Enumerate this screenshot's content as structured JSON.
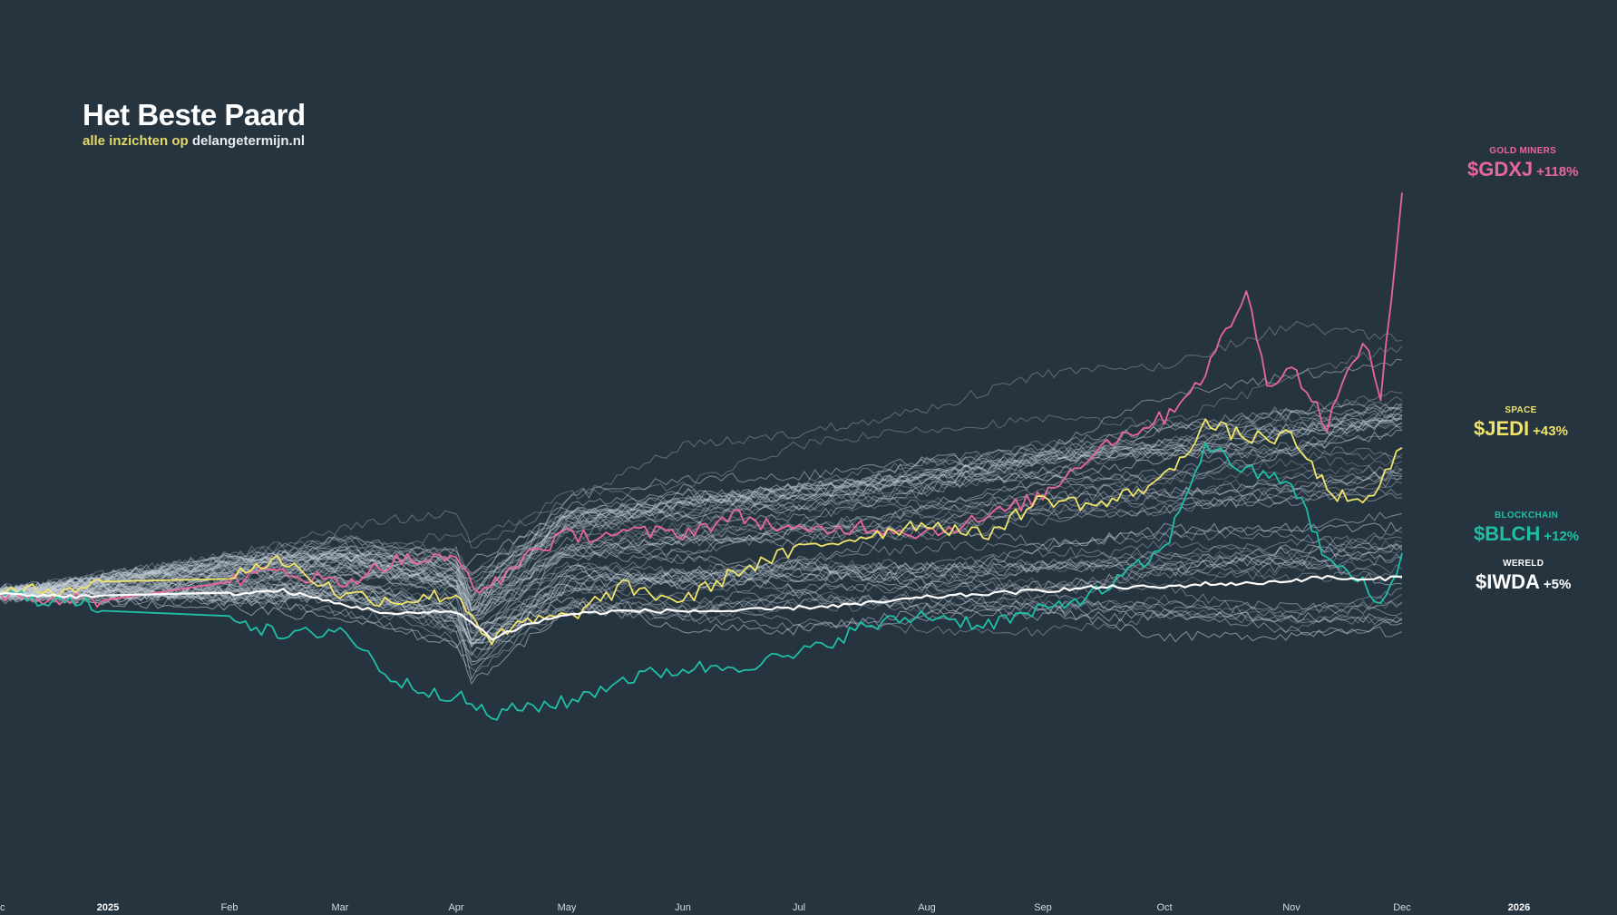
{
  "header": {
    "title": "Het Beste Paard",
    "subtitle_prefix": "alle inzichten op",
    "subtitle_site": "delangetermijn.nl"
  },
  "labels": {
    "gdxj": {
      "category": "GOLD MINERS",
      "ticker": "$GDXJ",
      "pct": "+118%",
      "color": "#e8679a"
    },
    "jedi": {
      "category": "SPACE",
      "ticker": "$JEDI",
      "pct": "+43%",
      "color": "#efe36a"
    },
    "blch": {
      "category": "BLOCKCHAIN",
      "ticker": "$BLCH",
      "pct": "+12%",
      "color": "#1fbfa4"
    },
    "iwda": {
      "category": "WERELD",
      "ticker": "$IWDA",
      "pct": "+5%",
      "color": "#ffffff"
    }
  },
  "chart_data": {
    "type": "line",
    "title": "Het Beste Paard",
    "x_tick_labels": [
      "c",
      "2025",
      "Feb",
      "Mar",
      "Apr",
      "May",
      "Jun",
      "Jul",
      "Aug",
      "Sep",
      "Oct",
      "Nov",
      "Dec",
      "2026"
    ],
    "x_tick_bold": [
      "2025",
      "2026"
    ],
    "y_unit": "% change",
    "grid": false,
    "highlighted_series": [
      {
        "name": "$GDXJ",
        "color": "#e8679a",
        "points": [
          [
            "Dec",
            0
          ],
          [
            "2025",
            -2
          ],
          [
            "Jan 15",
            1
          ],
          [
            "Feb",
            4
          ],
          [
            "Feb 15",
            7
          ],
          [
            "Mar",
            3
          ],
          [
            "Mar 15",
            10
          ],
          [
            "Apr",
            10
          ],
          [
            "Apr 8",
            0
          ],
          [
            "Apr 20",
            12
          ],
          [
            "May",
            17
          ],
          [
            "May 15",
            18
          ],
          [
            "Jun",
            18
          ],
          [
            "Jun 15",
            23
          ],
          [
            "Jul",
            18
          ],
          [
            "Jul 15",
            20
          ],
          [
            "Aug",
            18
          ],
          [
            "Aug 15",
            22
          ],
          [
            "Sep",
            29
          ],
          [
            "Sep 15",
            44
          ],
          [
            "Oct",
            52
          ],
          [
            "Oct 10",
            65
          ],
          [
            "Oct 20",
            89
          ],
          [
            "Oct 25",
            62
          ],
          [
            "Nov",
            67
          ],
          [
            "Nov 10",
            50
          ],
          [
            "Nov 20",
            75
          ],
          [
            "Nov 25",
            58
          ],
          [
            "Dec",
            118
          ]
        ]
      },
      {
        "name": "$JEDI",
        "color": "#efe36a",
        "points": [
          [
            "Dec",
            0
          ],
          [
            "2025",
            3
          ],
          [
            "Jan 15",
            4
          ],
          [
            "Feb",
            6
          ],
          [
            "Feb 15",
            10
          ],
          [
            "Mar",
            0
          ],
          [
            "Mar 15",
            -2
          ],
          [
            "Apr",
            0
          ],
          [
            "Apr 10",
            -14
          ],
          [
            "Apr 20",
            -8
          ],
          [
            "May",
            -7
          ],
          [
            "May 15",
            2
          ],
          [
            "Jun",
            -2
          ],
          [
            "Jun 15",
            7
          ],
          [
            "Jul",
            13
          ],
          [
            "Jul 15",
            17
          ],
          [
            "Aug",
            21
          ],
          [
            "Aug 15",
            17
          ],
          [
            "Sep",
            28
          ],
          [
            "Sep 15",
            26
          ],
          [
            "Oct",
            34
          ],
          [
            "Oct 10",
            50
          ],
          [
            "Oct 20",
            46
          ],
          [
            "Nov",
            46
          ],
          [
            "Nov 10",
            31
          ],
          [
            "Nov 20",
            25
          ],
          [
            "Dec",
            43
          ]
        ]
      },
      {
        "name": "$BLCH",
        "color": "#1fbfa4",
        "points": [
          [
            "Dec",
            0
          ],
          [
            "2025",
            -4
          ],
          [
            "Jan 15",
            -11
          ],
          [
            "Feb",
            -6
          ],
          [
            "Feb 15",
            -13
          ],
          [
            "Mar",
            -10
          ],
          [
            "Mar 15",
            -26
          ],
          [
            "Apr",
            -30
          ],
          [
            "Apr 10",
            -36
          ],
          [
            "Apr 20",
            -33
          ],
          [
            "May",
            -32
          ],
          [
            "May 15",
            -25
          ],
          [
            "Jun",
            -22
          ],
          [
            "Jun 15",
            -21
          ],
          [
            "Jul",
            -18
          ],
          [
            "Jul 15",
            -10
          ],
          [
            "Aug",
            -6
          ],
          [
            "Aug 15",
            -9
          ],
          [
            "Sep",
            -5
          ],
          [
            "Sep 15",
            1
          ],
          [
            "Oct",
            13
          ],
          [
            "Oct 10",
            44
          ],
          [
            "Oct 20",
            36
          ],
          [
            "Nov",
            33
          ],
          [
            "Nov 10",
            10
          ],
          [
            "Nov 20",
            3
          ],
          [
            "Nov 25",
            -4
          ],
          [
            "Dec",
            12
          ]
        ]
      },
      {
        "name": "$IWDA",
        "color": "#ffffff",
        "points": [
          [
            "Dec",
            0
          ],
          [
            "2025",
            -1
          ],
          [
            "Jan 15",
            -1
          ],
          [
            "Feb",
            0
          ],
          [
            "Feb 15",
            1
          ],
          [
            "Mar",
            -3
          ],
          [
            "Mar 15",
            -6
          ],
          [
            "Apr",
            -5
          ],
          [
            "Apr 10",
            -13
          ],
          [
            "Apr 20",
            -9
          ],
          [
            "May",
            -6
          ],
          [
            "May 15",
            -5
          ],
          [
            "Jun",
            -5
          ],
          [
            "Jun 15",
            -5
          ],
          [
            "Jul",
            -4
          ],
          [
            "Jul 15",
            -3
          ],
          [
            "Aug",
            -1
          ],
          [
            "Aug 15",
            0
          ],
          [
            "Sep",
            1
          ],
          [
            "Sep 15",
            2
          ],
          [
            "Oct",
            2
          ],
          [
            "Oct 10",
            3
          ],
          [
            "Oct 20",
            3
          ],
          [
            "Nov",
            4
          ],
          [
            "Nov 10",
            5
          ],
          [
            "Nov 20",
            4
          ],
          [
            "Dec",
            5
          ]
        ]
      }
    ],
    "background_series_note": "circa 60 other ETFs drawn in grey; final values range roughly -10% to +80%"
  }
}
